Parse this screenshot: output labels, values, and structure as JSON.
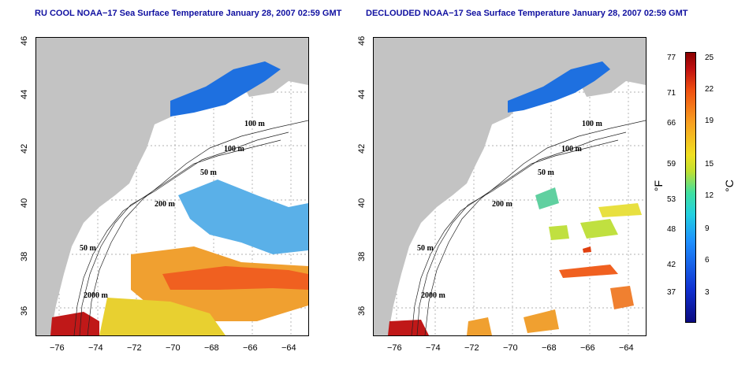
{
  "titles": {
    "left": "RU COOL NOAA−17 Sea Surface Temperature January 28, 2007 02:59 GMT",
    "right": "DECLOUDED NOAA−17 Sea Surface Temperature January 28, 2007 02:59 GMT"
  },
  "axes": {
    "lat_ticks": [
      "46",
      "44",
      "42",
      "40",
      "38",
      "36"
    ],
    "lon_ticks": [
      "−76",
      "−74",
      "−72",
      "−70",
      "−68",
      "−66",
      "−64"
    ]
  },
  "contours": {
    "left": [
      "100 m",
      "100 m",
      "50 m",
      "200 m",
      "50 m",
      "2000 m"
    ],
    "right": [
      "100 m",
      "100 m",
      "50 m",
      "200 m",
      "50 m",
      "2000 m"
    ]
  },
  "colorbar": {
    "fahrenheit_ticks": [
      "77",
      "71",
      "66",
      "59",
      "53",
      "48",
      "42",
      "37"
    ],
    "celsius_ticks": [
      "25",
      "22",
      "19",
      "15",
      "12",
      "9",
      "6",
      "3"
    ],
    "unit_f": "°F",
    "unit_c": "°C"
  },
  "colors": {
    "land": "#c3c3c3",
    "title": "#1010a0",
    "cold": "#1e70e0",
    "warm": "#f07020",
    "hot": "#c01010"
  }
}
